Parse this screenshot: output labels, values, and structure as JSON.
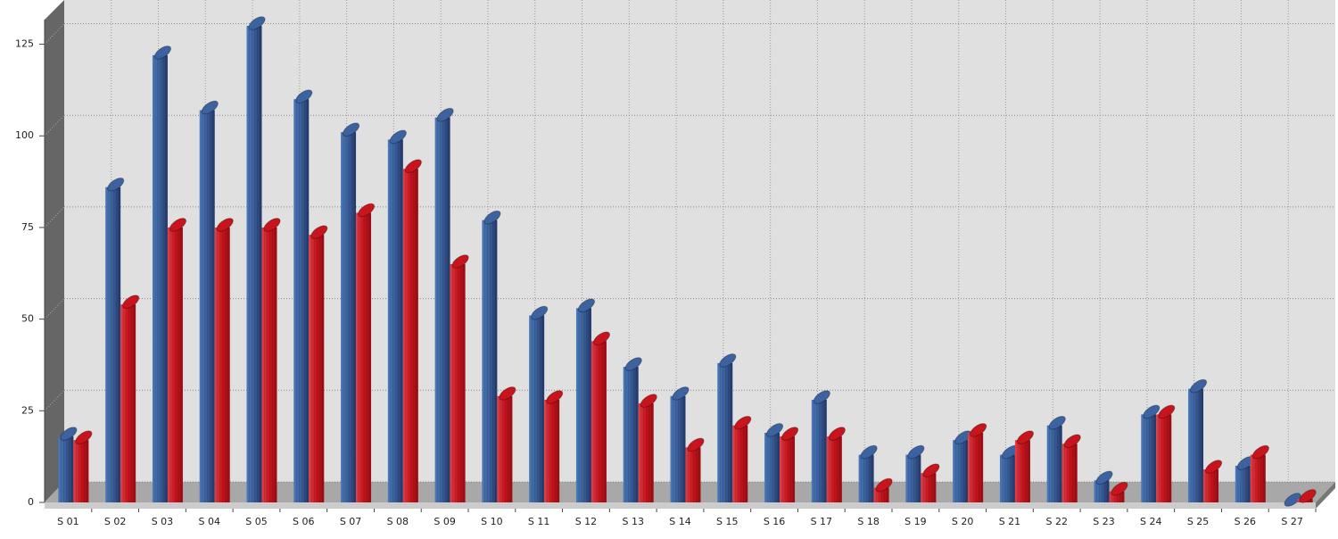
{
  "chart_data": {
    "type": "bar3d",
    "categories": [
      "S 01",
      "S 02",
      "S 03",
      "S 04",
      "S 05",
      "S 06",
      "S 07",
      "S 08",
      "S 09",
      "S 10",
      "S 11",
      "S 12",
      "S 13",
      "S 14",
      "S 15",
      "S 16",
      "S 17",
      "S 18",
      "S 19",
      "S 20",
      "S 21",
      "S 22",
      "S 23",
      "S 24",
      "S 25",
      "S 26",
      "S 27"
    ],
    "series": [
      {
        "color": "#3c63a0",
        "values": [
          18,
          86,
          122,
          107,
          130,
          110,
          101,
          99,
          105,
          77,
          51,
          53,
          37,
          29,
          38,
          19,
          28,
          13,
          13,
          17,
          13,
          21,
          6,
          24,
          31,
          10,
          0
        ]
      },
      {
        "color": "#c8141c",
        "values": [
          17,
          54,
          75,
          75,
          75,
          73,
          79,
          91,
          65,
          29,
          28,
          44,
          27,
          15,
          21,
          18,
          18,
          4,
          8,
          19,
          17,
          16,
          3,
          24,
          9,
          13,
          1
        ]
      }
    ],
    "ylim": [
      0,
      130
    ],
    "yticks": [
      0,
      25,
      50,
      75,
      100,
      125
    ],
    "grid": true
  }
}
